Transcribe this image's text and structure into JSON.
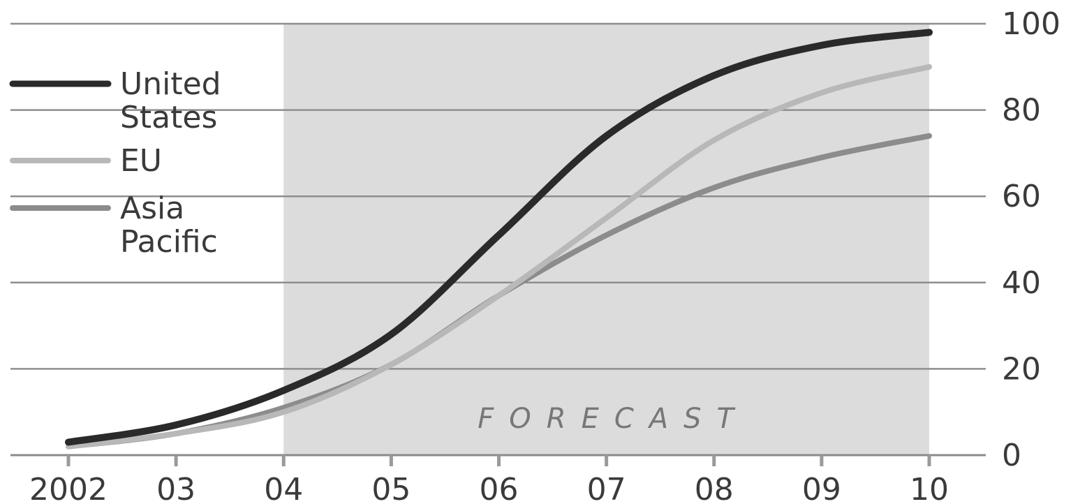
{
  "chart_data": {
    "type": "line",
    "x": [
      2002,
      2003,
      2004,
      2005,
      2006,
      2007,
      2008,
      2009,
      2010
    ],
    "x_tick_labels": [
      "2002",
      "03",
      "04",
      "05",
      "06",
      "07",
      "08",
      "09",
      "10"
    ],
    "y_tick_labels": [
      "0",
      "20",
      "40",
      "60",
      "80",
      "100"
    ],
    "y_ticks": [
      0,
      20,
      40,
      60,
      80,
      100
    ],
    "ylim": [
      0,
      100
    ],
    "xlim": [
      2002,
      2010
    ],
    "grid": true,
    "y_axis_position": "right",
    "legend_position": "top-left",
    "forecast_region": {
      "start": 2004,
      "end": 2010,
      "label": "FORECAST"
    },
    "series": [
      {
        "name": "United\nStates",
        "legend_lines": [
          "United",
          "States"
        ],
        "color": "#2a2a2a",
        "values": [
          3,
          7,
          15,
          28,
          51,
          74,
          88,
          95,
          98
        ]
      },
      {
        "name": "EU",
        "legend_lines": [
          "EU"
        ],
        "color": "#b8b8b8",
        "values": [
          2,
          5,
          10,
          21,
          37,
          55,
          73,
          84,
          90
        ]
      },
      {
        "name": "Asia\nPacific",
        "legend_lines": [
          "Asia",
          "Pacific"
        ],
        "color": "#8c8c8c",
        "values": [
          2,
          5,
          11,
          21,
          37,
          51,
          62,
          69,
          74
        ]
      }
    ]
  }
}
